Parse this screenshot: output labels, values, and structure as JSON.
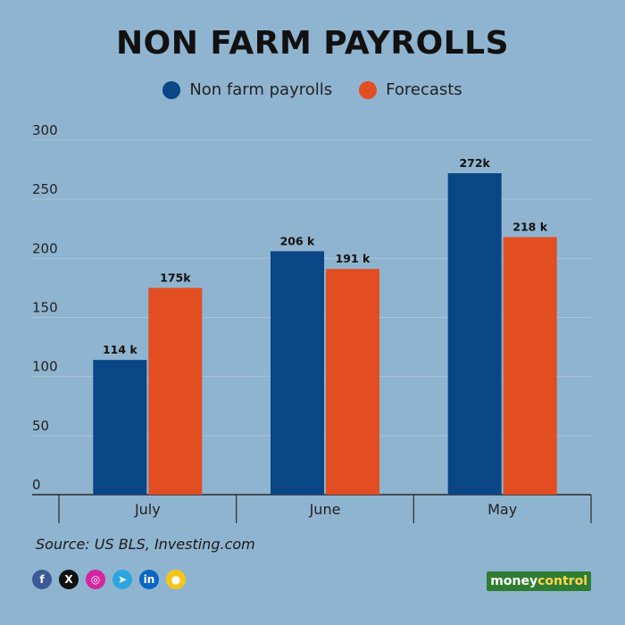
{
  "title": "NON FARM PAYROLLS",
  "colors": {
    "payrolls": "#0a4585",
    "forecasts": "#e34d22",
    "grid": "#a9c5da",
    "axis": "#2a2a2a"
  },
  "chart_data": {
    "type": "bar",
    "title": "NON FARM PAYROLLS",
    "categories": [
      "July",
      "June",
      "May"
    ],
    "series": [
      {
        "name": "Non farm payrolls",
        "values": [
          114,
          206,
          272
        ],
        "labels": [
          "114 k",
          "206 k",
          "272k"
        ],
        "color": "#0a4585"
      },
      {
        "name": "Forecasts",
        "values": [
          175,
          191,
          218
        ],
        "labels": [
          "175k",
          "191 k",
          "218 k"
        ],
        "color": "#e34d22"
      }
    ],
    "yticks": [
      0,
      50,
      100,
      150,
      200,
      250,
      300
    ],
    "ylim": [
      0,
      300
    ],
    "grid": true,
    "legend": "top-center"
  },
  "source": "Source: US BLS, Investing.com",
  "social_icons": [
    {
      "name": "facebook-icon",
      "glyph": "f",
      "color": "#3b5998"
    },
    {
      "name": "x-icon",
      "glyph": "X",
      "color": "#111111"
    },
    {
      "name": "instagram-icon",
      "glyph": "◎",
      "color": "#d6249f"
    },
    {
      "name": "telegram-icon",
      "glyph": "➤",
      "color": "#2ca5e0"
    },
    {
      "name": "linkedin-icon",
      "glyph": "in",
      "color": "#0a66c2"
    },
    {
      "name": "koo-icon",
      "glyph": "●",
      "color": "#f5c518"
    }
  ],
  "logo": {
    "part1": "money",
    "part2": "control"
  }
}
